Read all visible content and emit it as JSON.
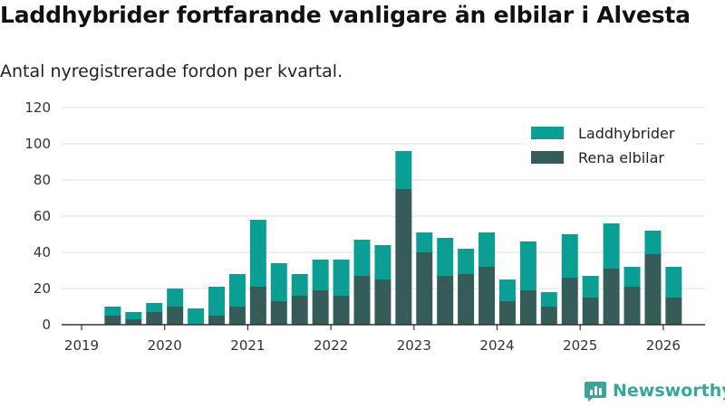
{
  "title": "Laddhybrider fortfarande vanligare än elbilar i Alvesta",
  "subtitle": "Antal nyregistrerade fordon per kvartal.",
  "brand": "Newsworthy",
  "colors": {
    "laddhybrider": "#0b9e95",
    "rena_elbilar": "#365c5a",
    "grid": "#dcdcdc",
    "axis": "#333333"
  },
  "chart_data": {
    "type": "bar",
    "stacked": true,
    "title": "Laddhybrider fortfarande vanligare än elbilar i Alvesta",
    "subtitle": "Antal nyregistrerade fordon per kvartal.",
    "xlabel": "",
    "ylabel": "",
    "ylim": [
      0,
      120
    ],
    "yticks": [
      "0",
      "20",
      "40",
      "60",
      "80",
      "100",
      "120"
    ],
    "xticks": [
      "2019",
      "2020",
      "2021",
      "2022",
      "2023",
      "2024",
      "2025",
      "2026"
    ],
    "legend_position": "top-right",
    "categories": [
      "2019 Q2",
      "2019 Q3",
      "2019 Q4",
      "2020 Q1",
      "2020 Q2",
      "2020 Q3",
      "2020 Q4",
      "2021 Q1",
      "2021 Q2",
      "2021 Q3",
      "2021 Q4",
      "2022 Q1",
      "2022 Q2",
      "2022 Q3",
      "2022 Q4",
      "2023 Q1",
      "2023 Q2",
      "2023 Q3",
      "2023 Q4",
      "2024 Q1",
      "2024 Q2",
      "2024 Q3",
      "2024 Q4",
      "2025 Q1",
      "2025 Q2",
      "2025 Q3",
      "2025 Q4",
      "2026 Q1"
    ],
    "series": [
      {
        "name": "Rena elbilar",
        "values": [
          5,
          3,
          7,
          10,
          0,
          5,
          10,
          21,
          13,
          16,
          19,
          16,
          27,
          25,
          75,
          40,
          27,
          28,
          32,
          13,
          19,
          10,
          26,
          15,
          31,
          21,
          39,
          15
        ]
      },
      {
        "name": "Laddhybrider",
        "values": [
          5,
          4,
          5,
          10,
          9,
          16,
          18,
          37,
          21,
          12,
          17,
          20,
          20,
          19,
          21,
          11,
          21,
          14,
          19,
          12,
          27,
          8,
          24,
          12,
          25,
          11,
          13,
          17
        ]
      }
    ]
  }
}
